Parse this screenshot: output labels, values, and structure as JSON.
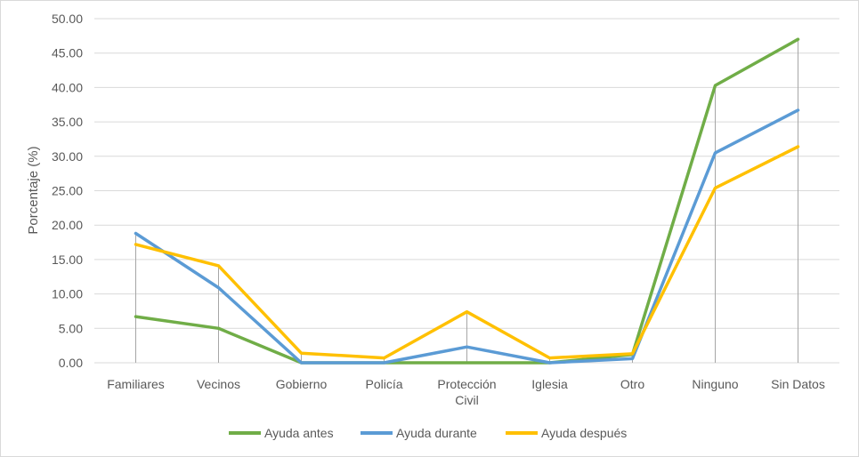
{
  "chart_data": {
    "type": "line",
    "title": "",
    "xlabel": "",
    "ylabel": "Porcentaje (%)",
    "ylim": [
      0,
      50
    ],
    "ytick_step": 5,
    "ytick_labels": [
      "0.00",
      "5.00",
      "10.00",
      "15.00",
      "20.00",
      "25.00",
      "30.00",
      "35.00",
      "40.00",
      "45.00",
      "50.00"
    ],
    "grid": true,
    "drop_lines": true,
    "legend_position": "bottom",
    "categories": [
      [
        "Familiares"
      ],
      [
        "Vecinos"
      ],
      [
        "Gobierno"
      ],
      [
        "Policía"
      ],
      [
        "Protección",
        "Civil"
      ],
      [
        "Iglesia"
      ],
      [
        "Otro"
      ],
      [
        "Ninguno"
      ],
      [
        "Sin Datos"
      ]
    ],
    "series": [
      {
        "name": "Ayuda antes",
        "color": "#70ad47",
        "values": [
          6.7,
          5.0,
          0.0,
          0.0,
          0.0,
          0.0,
          1.2,
          40.3,
          47.0
        ]
      },
      {
        "name": "Ayuda durante",
        "color": "#5b9bd5",
        "values": [
          18.8,
          10.9,
          0.0,
          0.0,
          2.3,
          0.0,
          0.6,
          30.5,
          36.7
        ]
      },
      {
        "name": "Ayuda después",
        "color": "#ffc000",
        "values": [
          17.2,
          14.1,
          1.4,
          0.7,
          7.4,
          0.7,
          1.3,
          25.4,
          31.4
        ]
      }
    ],
    "colors": {
      "grid": "#d9d9d9",
      "drop_line": "#a6a6a6",
      "text": "#595959"
    }
  }
}
